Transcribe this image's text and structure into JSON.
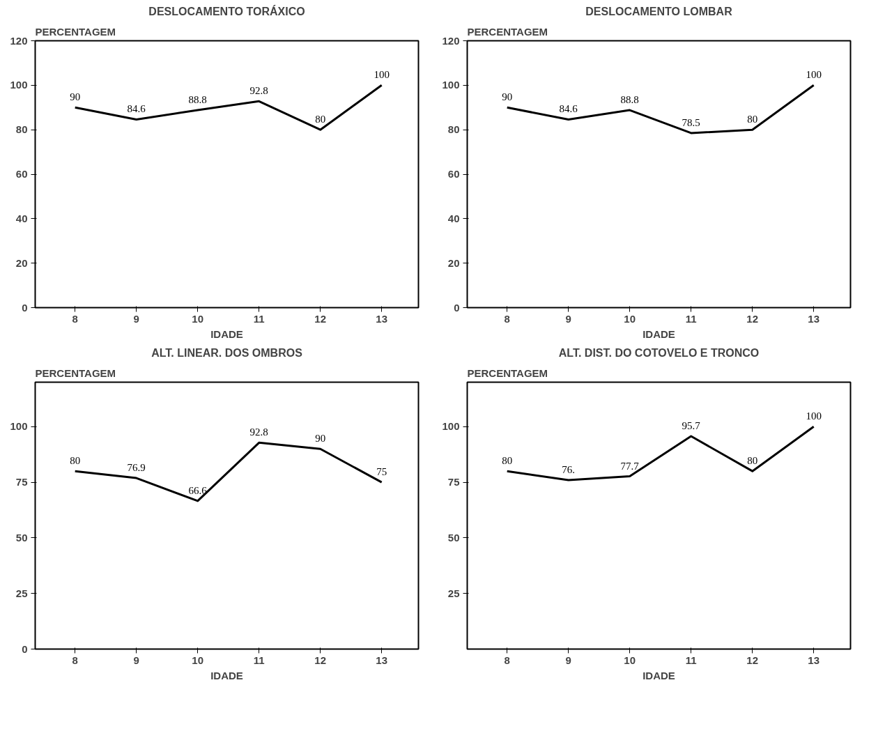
{
  "chart_data": [
    {
      "type": "line",
      "title": "DESLOCAMENTO TORÁXICO",
      "ylabel": "PERCENTAGEM",
      "xlabel": "IDADE",
      "x": [
        8,
        9,
        10,
        11,
        12,
        13
      ],
      "values": [
        90,
        84.6,
        88.8,
        92.8,
        80,
        100
      ],
      "color": "#000000",
      "xlim": [
        7.35,
        13.6
      ],
      "xticks": [
        8,
        9,
        10,
        11,
        12,
        13
      ],
      "ylim": [
        0,
        120
      ],
      "yticks": [
        0,
        20,
        40,
        60,
        80,
        100,
        120
      ],
      "data_labels": true,
      "grid": false,
      "marker": "none",
      "line_style": "solid"
    },
    {
      "type": "line",
      "title": "DESLOCAMENTO LOMBAR",
      "ylabel": "PERCENTAGEM",
      "xlabel": "IDADE",
      "x": [
        8,
        9,
        10,
        11,
        12,
        13
      ],
      "values": [
        90,
        84.6,
        88.8,
        78.5,
        80,
        100
      ],
      "color": "#000000",
      "xlim": [
        7.35,
        13.6
      ],
      "xticks": [
        8,
        9,
        10,
        11,
        12,
        13
      ],
      "ylim": [
        0,
        120
      ],
      "yticks": [
        0,
        20,
        40,
        60,
        80,
        100,
        120
      ],
      "data_labels": true,
      "grid": false,
      "marker": "none",
      "line_style": "solid"
    },
    {
      "type": "line",
      "title": "ALT. LINEAR. DOS OMBROS",
      "ylabel": "PERCENTAGEM",
      "xlabel": "IDADE",
      "x": [
        8,
        9,
        10,
        11,
        12,
        13
      ],
      "values": [
        80,
        76.9,
        66.6,
        92.8,
        90,
        75
      ],
      "color": "#000000",
      "xlim": [
        7.35,
        13.6
      ],
      "xticks": [
        8,
        9,
        10,
        11,
        12,
        13
      ],
      "ylim": [
        0,
        120
      ],
      "yticks": [
        0,
        25,
        50,
        75,
        100
      ],
      "data_labels": true,
      "grid": false,
      "marker": "none",
      "line_style": "solid"
    },
    {
      "type": "line",
      "title": "ALT. DIST. DO COTOVELO E TRONCO",
      "ylabel": "PERCENTAGEM",
      "xlabel": "IDADE",
      "x": [
        8,
        9,
        10,
        11,
        12,
        13
      ],
      "values": [
        80,
        76,
        77.7,
        95.7,
        80,
        100
      ],
      "value_labels": [
        "80",
        "76.",
        "77.7",
        "95.7",
        "80",
        "100"
      ],
      "color": "#000000",
      "xlim": [
        7.35,
        13.6
      ],
      "xticks": [
        8,
        9,
        10,
        11,
        12,
        13
      ],
      "ylim": [
        0,
        120
      ],
      "yticks": [
        25,
        50,
        75,
        100
      ],
      "grid": false,
      "marker": "none",
      "line_style": "solid"
    }
  ]
}
